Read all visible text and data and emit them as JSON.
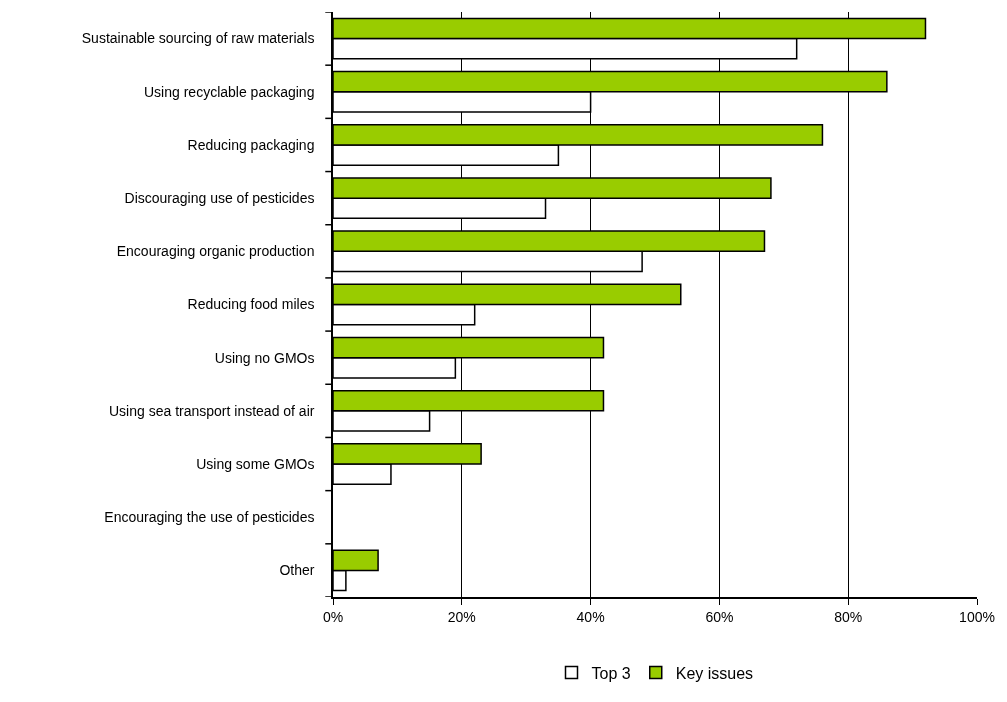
{
  "chart_data": {
    "type": "bar",
    "orientation": "horizontal",
    "categories": [
      "Sustainable sourcing of raw materials",
      "Using recyclable packaging",
      "Reducing packaging",
      "Discouraging use of pesticides",
      "Encouraging organic production",
      "Reducing food miles",
      "Using no GMOs",
      "Using sea transport instead of air",
      "Using some GMOs",
      "Encouraging the use of pesticides",
      "Other"
    ],
    "series": [
      {
        "name": "Top 3",
        "color": "#ffffff",
        "values": [
          72,
          40,
          35,
          33,
          48,
          22,
          19,
          15,
          9,
          0,
          2
        ]
      },
      {
        "name": "Key issues",
        "color": "#99cc00",
        "values": [
          92,
          86,
          76,
          68,
          67,
          54,
          42,
          42,
          23,
          0,
          7
        ]
      }
    ],
    "xlim": [
      0,
      100
    ],
    "xticks": [
      {
        "value": 0,
        "label": "0%"
      },
      {
        "value": 20,
        "label": "20%"
      },
      {
        "value": 40,
        "label": "40%"
      },
      {
        "value": 60,
        "label": "60%"
      },
      {
        "value": 80,
        "label": "80%"
      },
      {
        "value": 100,
        "label": "100%"
      }
    ],
    "grid": "x",
    "legend": "bottom"
  }
}
